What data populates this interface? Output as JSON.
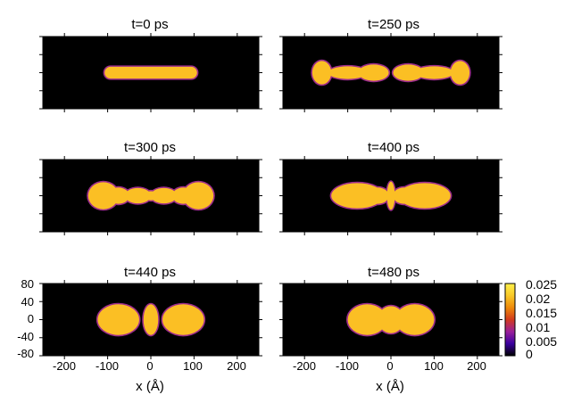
{
  "chart_data": {
    "type": "heatmap",
    "xlabel": "x (Å)",
    "xlim": [
      -250,
      250
    ],
    "ylim": [
      -80,
      80
    ],
    "x_ticks": [
      -200,
      -100,
      0,
      100,
      200
    ],
    "x_tick_labels": [
      "-200",
      "-100",
      "0",
      "100",
      "200"
    ],
    "y_ticks": [
      80,
      40,
      0,
      -40,
      -80
    ],
    "y_tick_labels": [
      "80",
      "40",
      "0",
      "-40",
      "-80"
    ],
    "colorbar": {
      "range": [
        0,
        0.025
      ],
      "ticks": [
        0.025,
        0.02,
        0.015,
        0.01,
        0.005,
        0
      ],
      "tick_labels": [
        "0.025",
        "0.02",
        "0.015",
        "0.01",
        "0.005",
        "0"
      ],
      "colors": [
        "#000000",
        "#3a00a0",
        "#9a1f9a",
        "#d23a1e",
        "#ee8a0a",
        "#f8c828",
        "#fff04a"
      ]
    },
    "background_color": "#000000",
    "fill_color": "#fbbf24",
    "edge_color": "#9d2d8c",
    "panels": [
      {
        "title": "t=0 ps",
        "lobes": [
          {
            "x": 0,
            "y": 0,
            "rx": 107,
            "ry": 13,
            "shape": "rounded-rect"
          }
        ]
      },
      {
        "title": "t=250 ps",
        "lobes": [
          {
            "x": -160,
            "y": 0,
            "rx": 22,
            "ry": 26
          },
          {
            "x": -100,
            "y": 0,
            "rx": 45,
            "ry": 14
          },
          {
            "x": -40,
            "y": 0,
            "rx": 35,
            "ry": 18
          },
          {
            "x": 40,
            "y": 0,
            "rx": 35,
            "ry": 18
          },
          {
            "x": 100,
            "y": 0,
            "rx": 45,
            "ry": 14
          },
          {
            "x": 160,
            "y": 0,
            "rx": 22,
            "ry": 26
          }
        ]
      },
      {
        "title": "t=300 ps",
        "lobes": [
          {
            "x": -110,
            "y": 0,
            "rx": 35,
            "ry": 30
          },
          {
            "x": -75,
            "y": 0,
            "rx": 25,
            "ry": 18
          },
          {
            "x": -30,
            "y": 0,
            "rx": 30,
            "ry": 17
          },
          {
            "x": 0,
            "y": 0,
            "rx": 20,
            "ry": 10
          },
          {
            "x": 30,
            "y": 0,
            "rx": 30,
            "ry": 17
          },
          {
            "x": 75,
            "y": 0,
            "rx": 25,
            "ry": 18
          },
          {
            "x": 110,
            "y": 0,
            "rx": 35,
            "ry": 30
          }
        ]
      },
      {
        "title": "t=400 ps",
        "lobes": [
          {
            "x": -78,
            "y": 0,
            "rx": 60,
            "ry": 28
          },
          {
            "x": -30,
            "y": 0,
            "rx": 25,
            "ry": 18
          },
          {
            "x": 0,
            "y": 0,
            "rx": 9,
            "ry": 31
          },
          {
            "x": 30,
            "y": 0,
            "rx": 25,
            "ry": 18
          },
          {
            "x": 78,
            "y": 0,
            "rx": 60,
            "ry": 28
          }
        ]
      },
      {
        "title": "t=440 ps",
        "lobes": [
          {
            "x": -75,
            "y": 0,
            "rx": 48,
            "ry": 34
          },
          {
            "x": 0,
            "y": 0,
            "rx": 17,
            "ry": 34
          },
          {
            "x": 75,
            "y": 0,
            "rx": 48,
            "ry": 34
          }
        ]
      },
      {
        "title": "t=480 ps",
        "lobes": [
          {
            "x": -55,
            "y": 0,
            "rx": 45,
            "ry": 34
          },
          {
            "x": 0,
            "y": 0,
            "rx": 30,
            "ry": 30
          },
          {
            "x": 55,
            "y": 0,
            "rx": 45,
            "ry": 34
          }
        ]
      }
    ]
  }
}
